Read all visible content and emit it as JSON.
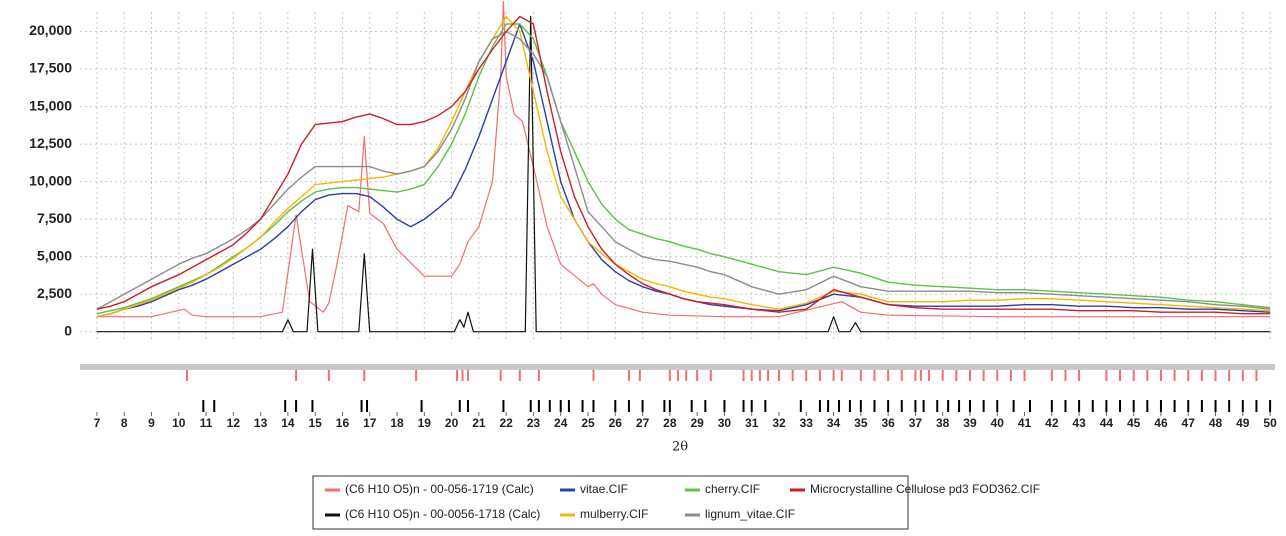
{
  "chart_data": {
    "type": "line",
    "x_label": "2θ",
    "xlim": [
      6.38,
      50.18
    ],
    "ylim": [
      -550,
      21300
    ],
    "xticks": [
      7,
      8,
      9,
      10,
      11,
      12,
      13,
      14,
      15,
      16,
      17,
      18,
      19,
      20,
      21,
      22,
      23,
      24,
      25,
      26,
      27,
      28,
      29,
      30,
      31,
      32,
      33,
      34,
      35,
      36,
      37,
      38,
      39,
      40,
      41,
      42,
      43,
      44,
      45,
      46,
      47,
      48,
      49,
      50
    ],
    "yticks": [
      0,
      {
        "value": 2500,
        "label": "2,500"
      },
      {
        "value": 5000,
        "label": "5,000"
      },
      {
        "value": 7500,
        "label": "7,500"
      },
      {
        "value": 10000,
        "label": "10,000"
      },
      {
        "value": 12500,
        "label": "12,500"
      },
      {
        "value": 15000,
        "label": "15,000"
      },
      {
        "value": 17500,
        "label": "17,500"
      },
      {
        "value": 20000,
        "label": "20,000"
      }
    ],
    "grid": true,
    "legend": "bottom",
    "x": [
      7,
      7.5,
      8,
      8.5,
      9,
      9.5,
      10,
      10.5,
      11,
      11.5,
      12,
      12.5,
      13,
      13.5,
      14,
      14.5,
      15,
      15.5,
      16,
      16.5,
      17,
      17.5,
      18,
      18.5,
      19,
      19.5,
      20,
      20.5,
      21,
      21.5,
      22,
      22.5,
      23,
      23.5,
      24,
      24.5,
      25,
      25.5,
      26,
      26.5,
      27,
      27.5,
      28,
      28.5,
      29,
      29.5,
      30,
      31,
      32,
      33,
      34,
      35,
      36,
      37,
      38,
      39,
      40,
      41,
      42,
      43,
      44,
      45,
      46,
      47,
      48,
      49,
      50
    ],
    "series": [
      {
        "name": "(C6 H10 O5)n - 00-056-1719 (Calc)",
        "color": "#f26d6d",
        "x": [
          7,
          9,
          10.2,
          10.5,
          11,
          13,
          13.8,
          14.3,
          14.8,
          15.3,
          15.5,
          15.8,
          16.2,
          16.6,
          16.8,
          17.0,
          17.5,
          18,
          19,
          20,
          20.3,
          20.6,
          21,
          21.5,
          21.8,
          21.9,
          22.0,
          22.3,
          22.6,
          23,
          23.5,
          24,
          25,
          25.2,
          25.5,
          26,
          27,
          28,
          30,
          32,
          34.3,
          35,
          36,
          40,
          50
        ],
        "values": [
          1000,
          1000,
          1500,
          1100,
          1000,
          1000,
          1300,
          7800,
          2000,
          1300,
          1900,
          4500,
          8400,
          8000,
          13000,
          7900,
          7200,
          5500,
          3700,
          3700,
          4500,
          6000,
          7000,
          10000,
          17000,
          22000,
          17000,
          14500,
          14000,
          11000,
          7000,
          4500,
          3000,
          3200,
          2500,
          1800,
          1300,
          1100,
          1000,
          1000,
          2000,
          1300,
          1100,
          1000,
          1000
        ],
        "reflections": [
          10.3,
          14.3,
          15.5,
          16.8,
          18.7,
          20.2,
          20.4,
          20.6,
          21.8,
          22.5,
          23.2,
          25.2,
          26.5,
          26.9,
          28,
          28.3,
          28.6,
          29,
          29.5,
          30.7,
          31,
          31.3,
          31.6,
          32,
          32.5,
          33,
          33.5,
          34,
          34.3,
          35,
          35.5,
          36,
          36.5,
          37,
          37.2,
          37.5,
          38,
          38.5,
          39,
          39.5,
          40,
          40.5,
          41,
          42,
          42.5,
          43,
          44,
          44.5,
          45,
          45.5,
          46,
          46.5,
          47,
          47.5,
          48,
          48.5,
          49,
          49.5
        ]
      },
      {
        "name": "vitae.CIF",
        "color": "#2a3fa8",
        "values": [
          1000,
          1200,
          1500,
          1700,
          2000,
          2400,
          2800,
          3100,
          3500,
          4000,
          4500,
          5000,
          5500,
          6200,
          7000,
          8000,
          8800,
          9100,
          9200,
          9200,
          9000,
          8300,
          7500,
          7000,
          7500,
          8200,
          9000,
          10800,
          13000,
          15500,
          18000,
          20500,
          18000,
          14000,
          10000,
          7500,
          6000,
          4800,
          4000,
          3400,
          3000,
          2700,
          2500,
          2200,
          2000,
          1800,
          1700,
          1500,
          1400,
          1800,
          2500,
          2300,
          1800,
          1700,
          1700,
          1700,
          1700,
          1800,
          1800,
          1700,
          1700,
          1600,
          1600,
          1500,
          1500,
          1400,
          1300
        ]
      },
      {
        "name": "cherry.CIF",
        "color": "#5cc24a",
        "values": [
          1200,
          1400,
          1600,
          1900,
          2200,
          2600,
          3000,
          3400,
          3800,
          4400,
          5000,
          5600,
          6300,
          7100,
          8000,
          8700,
          9300,
          9500,
          9600,
          9600,
          9500,
          9400,
          9300,
          9500,
          9800,
          11000,
          12500,
          14500,
          17000,
          19000,
          20500,
          20500,
          19500,
          17000,
          14000,
          12000,
          10000,
          8500,
          7500,
          6800,
          6500,
          6200,
          6000,
          5700,
          5500,
          5200,
          5000,
          4500,
          4000,
          3800,
          4300,
          3900,
          3300,
          3100,
          3000,
          2900,
          2800,
          2800,
          2700,
          2600,
          2500,
          2400,
          2300,
          2100,
          2000,
          1800,
          1600
        ]
      },
      {
        "name": "Microcrystalline Cellulose pd3 FOD362.CIF",
        "color": "#c8202a",
        "values": [
          1500,
          1700,
          2000,
          2500,
          3000,
          3400,
          3800,
          4300,
          4800,
          5300,
          5800,
          6600,
          7500,
          9000,
          10500,
          12500,
          13800,
          13900,
          14000,
          14300,
          14500,
          14200,
          13800,
          13800,
          14000,
          14400,
          15000,
          16000,
          17500,
          18800,
          20000,
          21000,
          20500,
          16000,
          12000,
          9000,
          7000,
          5500,
          4500,
          3800,
          3200,
          2800,
          2500,
          2200,
          2000,
          1900,
          1800,
          1500,
          1300,
          1500,
          2800,
          2300,
          1800,
          1600,
          1500,
          1500,
          1500,
          1500,
          1500,
          1400,
          1400,
          1400,
          1300,
          1300,
          1300,
          1200,
          1200
        ]
      },
      {
        "name": "(C6 H10 O5)n - 00-0056-1718 (Calc)",
        "color": "#111111",
        "x": [
          7,
          13.8,
          14,
          14.2,
          14.7,
          14.9,
          15.1,
          16.6,
          16.8,
          17,
          20.1,
          20.3,
          20.45,
          20.6,
          20.8,
          22.7,
          22.9,
          23.1,
          30,
          33.8,
          34,
          34.2,
          34.6,
          34.8,
          35,
          50
        ],
        "values": [
          0,
          0,
          800,
          0,
          0,
          5500,
          0,
          0,
          5200,
          0,
          0,
          800,
          300,
          1300,
          0,
          0,
          21000,
          0,
          0,
          0,
          1000,
          0,
          0,
          600,
          0,
          0
        ],
        "reflections": [
          10.9,
          11.3,
          13.9,
          14.3,
          14.9,
          16.7,
          16.9,
          18.9,
          20.3,
          20.6,
          21.9,
          22.9,
          23.2,
          23.6,
          24,
          24.3,
          24.8,
          25.2,
          26,
          26.5,
          27,
          27.8,
          28,
          28.8,
          29.3,
          30,
          30.7,
          31,
          31.5,
          32.8,
          33.5,
          33.8,
          34.2,
          34.6,
          35,
          35.5,
          36,
          36.5,
          37,
          37.3,
          37.8,
          38.2,
          38.6,
          39,
          39.5,
          40,
          40.6,
          41.2,
          42,
          42.5,
          43,
          43.5,
          44,
          44.5,
          45,
          45.5,
          46,
          46.5,
          47,
          47.5,
          48,
          48.5,
          49,
          49.5,
          50
        ]
      },
      {
        "name": "mulberry.CIF",
        "color": "#f5b800",
        "values": [
          1000,
          1200,
          1500,
          1800,
          2100,
          2500,
          2900,
          3300,
          3800,
          4300,
          4900,
          5600,
          6300,
          7300,
          8200,
          9000,
          9800,
          9900,
          10000,
          10100,
          10200,
          10300,
          10500,
          10700,
          11000,
          12200,
          14000,
          16000,
          18000,
          19500,
          21000,
          20000,
          16000,
          12000,
          9000,
          7500,
          6000,
          5200,
          4500,
          4000,
          3500,
          3200,
          3000,
          2700,
          2500,
          2300,
          2200,
          1800,
          1500,
          1900,
          2700,
          2500,
          2000,
          2000,
          2000,
          2100,
          2100,
          2200,
          2200,
          2100,
          2000,
          1900,
          1800,
          1700,
          1600,
          1500,
          1400
        ]
      },
      {
        "name": "lignum_vitae.CIF",
        "color": "#8c8c8c",
        "values": [
          1500,
          2000,
          2500,
          3000,
          3500,
          4000,
          4500,
          4900,
          5200,
          5700,
          6200,
          6800,
          7500,
          8500,
          9500,
          10300,
          11000,
          11000,
          11000,
          11000,
          11000,
          10700,
          10500,
          10700,
          11000,
          12000,
          13500,
          15500,
          18000,
          19500,
          20000,
          19500,
          18500,
          17000,
          14000,
          11000,
          8000,
          7000,
          6000,
          5500,
          5000,
          4800,
          4700,
          4500,
          4300,
          4000,
          3800,
          3000,
          2500,
          2800,
          3700,
          3000,
          2700,
          2700,
          2700,
          2700,
          2600,
          2600,
          2500,
          2400,
          2300,
          2200,
          2100,
          2000,
          1800,
          1700,
          1500
        ]
      }
    ]
  }
}
